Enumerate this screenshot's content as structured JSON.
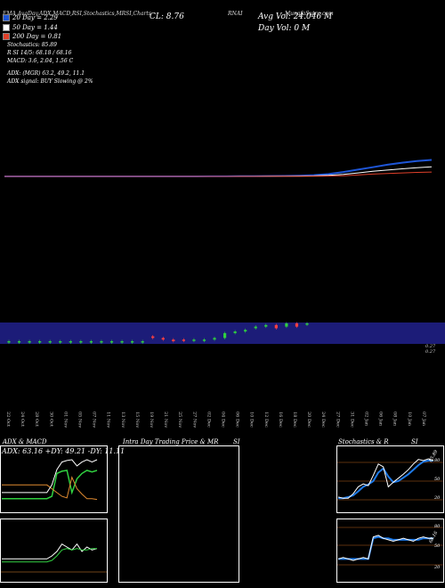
{
  "header": {
    "symbol": "RNAI",
    "source": "MunafaSutra.com",
    "indicators": "EMA,AvgDay,ADX,MACD,RSI,Stochastics,MRSI,Charts",
    "close": "CL: 8.76",
    "avg_vol": "Avg Vol: 24.046  M",
    "day_vol": "Day Vol: 0  M"
  },
  "legend": [
    {
      "label": "20  Day = 2.29",
      "color": "#1e56d8"
    },
    {
      "label": "50  Day = 1.44",
      "color": "#ffffff"
    },
    {
      "label": "200  Day = 0.81",
      "color": "#e0402a"
    }
  ],
  "stats": {
    "stochastics": "Stochastics: 85.89",
    "rsi": "R            SI 14/5: 68.18 / 68.16",
    "macd": "MACD: 3.6,  2.04,  1.56  C",
    "adx": "ADX:                    (MGR) 63.2,  49.2,  11.1",
    "adx_signal": "ADX  signal:                          BUY Slowing @ 2%"
  },
  "price_axis": [
    "0.27",
    "0.27"
  ],
  "dates": [
    "22 Oct",
    "24 Oct",
    "28 Oct",
    "30 Oct",
    "01 Nov",
    "05 Nov",
    "07 Nov",
    "11 Nov",
    "13 Nov",
    "15 Nov",
    "19 Nov",
    "21 Nov",
    "25 Nov",
    "27 Nov",
    "02 Dec",
    "04 Dec",
    "06 Dec",
    "10 Dec",
    "12 Dec",
    "16 Dec",
    "18 Dec",
    "20 Dec",
    "24 Dec",
    "27 Dec",
    "31 Dec",
    "02 Jan",
    "06 Jan",
    "08 Jan",
    "10 Jan",
    "07 Jan"
  ],
  "panels": {
    "adx_title": "ADX  & MACD",
    "adx_values": "ADX: 63.16  +DY: 49.21  -DY: 11.11",
    "intra_title": "Intra  Day Trading Price  & MR",
    "intra_suffix": "SI",
    "stoch_title": "Stochastics & R",
    "stoch_suffix": "SI",
    "stoch_last": "85.89",
    "stoch_levels": [
      "80",
      "50",
      "20"
    ],
    "rsi_levels": [
      "80",
      "50",
      "20"
    ],
    "rsi_last": "68.16"
  },
  "chart_data": {
    "type": "line",
    "series": [
      {
        "name": "20  Day",
        "color": "#1e56d8",
        "values": [
          0.27,
          0.27,
          0.27,
          0.27,
          0.27,
          0.27,
          0.27,
          0.27,
          0.27,
          0.27,
          0.27,
          0.27,
          0.27,
          0.27,
          0.28,
          0.28,
          0.29,
          0.3,
          0.31,
          0.33,
          0.36,
          0.42,
          0.55,
          0.8,
          1.1,
          1.4,
          1.7,
          1.95,
          2.15,
          2.29
        ]
      },
      {
        "name": "50  Day",
        "color": "#ffffff",
        "values": [
          0.27,
          0.27,
          0.27,
          0.27,
          0.27,
          0.27,
          0.27,
          0.27,
          0.27,
          0.27,
          0.27,
          0.27,
          0.27,
          0.27,
          0.27,
          0.27,
          0.28,
          0.28,
          0.29,
          0.3,
          0.31,
          0.34,
          0.4,
          0.52,
          0.7,
          0.9,
          1.05,
          1.2,
          1.33,
          1.44
        ]
      },
      {
        "name": "200  Day",
        "color": "#e0402a",
        "values": [
          0.27,
          0.27,
          0.27,
          0.27,
          0.27,
          0.27,
          0.27,
          0.27,
          0.27,
          0.27,
          0.27,
          0.27,
          0.27,
          0.27,
          0.27,
          0.27,
          0.27,
          0.27,
          0.28,
          0.28,
          0.28,
          0.29,
          0.31,
          0.36,
          0.45,
          0.55,
          0.63,
          0.7,
          0.76,
          0.81
        ]
      }
    ],
    "candles": [
      {
        "o": 0.27,
        "c": 0.27,
        "up": true
      },
      {
        "o": 0.27,
        "c": 0.27,
        "up": true
      },
      {
        "o": 0.27,
        "c": 0.27,
        "up": true
      },
      {
        "o": 0.27,
        "c": 0.27,
        "up": true
      },
      {
        "o": 0.27,
        "c": 0.27,
        "up": true
      },
      {
        "o": 0.27,
        "c": 0.27,
        "up": true
      },
      {
        "o": 0.27,
        "c": 0.27,
        "up": true
      },
      {
        "o": 0.27,
        "c": 0.27,
        "up": true
      },
      {
        "o": 0.27,
        "c": 0.27,
        "up": true
      },
      {
        "o": 0.27,
        "c": 0.27,
        "up": true
      },
      {
        "o": 0.27,
        "c": 0.27,
        "up": true
      },
      {
        "o": 0.27,
        "c": 0.27,
        "up": true
      },
      {
        "o": 0.27,
        "c": 0.27,
        "up": true
      },
      {
        "o": 0.27,
        "c": 0.27,
        "up": true
      },
      {
        "o": 0.3,
        "c": 0.29,
        "up": false
      },
      {
        "o": 0.29,
        "c": 0.28,
        "up": false
      },
      {
        "o": 0.28,
        "c": 0.27,
        "up": false
      },
      {
        "o": 0.28,
        "c": 0.275,
        "up": false
      },
      {
        "o": 0.275,
        "c": 0.28,
        "up": true
      },
      {
        "o": 0.28,
        "c": 0.28,
        "up": true
      },
      {
        "o": 0.28,
        "c": 0.29,
        "up": true
      },
      {
        "o": 0.29,
        "c": 0.32,
        "up": true
      },
      {
        "o": 0.32,
        "c": 0.33,
        "up": true
      },
      {
        "o": 0.33,
        "c": 0.34,
        "up": true
      },
      {
        "o": 0.35,
        "c": 0.36,
        "up": true
      },
      {
        "o": 0.36,
        "c": 0.37,
        "up": true
      },
      {
        "o": 0.37,
        "c": 0.35,
        "up": false
      },
      {
        "o": 0.36,
        "c": 0.38,
        "up": true
      },
      {
        "o": 0.38,
        "c": 0.36,
        "up": false
      },
      {
        "o": 0.38,
        "c": 0.38,
        "up": true
      }
    ],
    "adx": [
      20,
      20,
      20,
      20,
      20,
      20,
      20,
      20,
      20,
      20,
      30,
      50,
      60,
      62,
      63,
      55,
      60,
      63,
      60,
      63
    ],
    "plus_di": [
      12,
      12,
      12,
      12,
      12,
      12,
      12,
      12,
      12,
      12,
      15,
      45,
      48,
      49,
      20,
      38,
      45,
      49,
      47,
      49
    ],
    "minus_di": [
      30,
      30,
      30,
      30,
      30,
      30,
      30,
      30,
      30,
      30,
      25,
      20,
      15,
      13,
      40,
      25,
      18,
      12,
      12,
      11
    ],
    "stoch": [
      22,
      20,
      20,
      28,
      40,
      45,
      42,
      60,
      80,
      75,
      40,
      48,
      55,
      62,
      70,
      80,
      88,
      86,
      89,
      86
    ],
    "stoch_d": [
      20,
      20,
      22,
      25,
      32,
      40,
      44,
      50,
      65,
      72,
      58,
      48,
      50,
      56,
      62,
      70,
      78,
      84,
      86,
      86
    ],
    "rsi": [
      40,
      42,
      40,
      38,
      40,
      42,
      40,
      70,
      72,
      68,
      66,
      64,
      66,
      68,
      66,
      64,
      68,
      70,
      68,
      68
    ],
    "mrsi": [
      40,
      40,
      40,
      40,
      40,
      40,
      40,
      68,
      70,
      68,
      68,
      66,
      66,
      66,
      66,
      66,
      66,
      68,
      68,
      68
    ]
  }
}
